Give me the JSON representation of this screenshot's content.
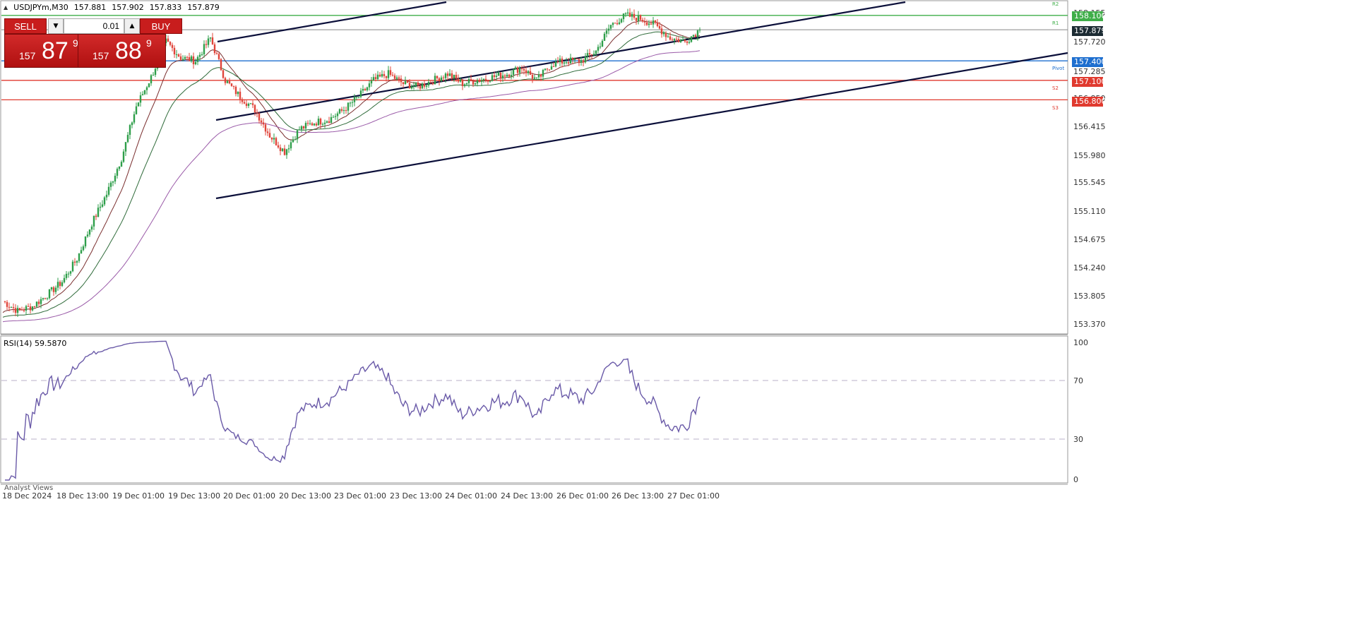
{
  "header": {
    "symbol_tf": "USDJPYm,M30",
    "ohlc": [
      "157.881",
      "157.902",
      "157.833",
      "157.879"
    ]
  },
  "trade_panel": {
    "sell_label": "SELL",
    "buy_label": "BUY",
    "volume": "0.01",
    "sell_price": {
      "small": "157",
      "big": "87",
      "sup": "9"
    },
    "buy_price": {
      "small": "157",
      "big": "88",
      "sup": "9"
    }
  },
  "y_axis": [
    "158.155",
    "157.720",
    "157.285",
    "156.850",
    "156.415",
    "155.980",
    "155.545",
    "155.110",
    "154.675",
    "154.240",
    "153.805",
    "153.370"
  ],
  "price_tags": [
    {
      "value": "158.100",
      "color": "#3fae49"
    },
    {
      "value": "157.879",
      "color": "#1c2b33"
    },
    {
      "value": "157.400",
      "color": "#1e6fcf"
    },
    {
      "value": "157.100",
      "color": "#e03a2f"
    },
    {
      "value": "156.800",
      "color": "#e03a2f"
    }
  ],
  "pivot_labels": [
    "R2",
    "R1",
    "Pivot",
    "S2",
    "S3"
  ],
  "x_axis": [
    "18 Dec 2024",
    "18 Dec 13:00",
    "19 Dec 01:00",
    "19 Dec 13:00",
    "20 Dec 01:00",
    "20 Dec 13:00",
    "23 Dec 01:00",
    "23 Dec 13:00",
    "24 Dec 01:00",
    "24 Dec 13:00",
    "26 Dec 01:00",
    "26 Dec 13:00",
    "27 Dec 01:00"
  ],
  "rsi": {
    "title": "RSI(14) 59.5870",
    "levels": [
      "100",
      "70",
      "30",
      "0"
    ],
    "current": 59.587
  },
  "analyst_tab": "Analyst Views",
  "chart_data": {
    "type": "candlestick",
    "symbol": "USDJPYm",
    "timeframe": "M30",
    "ylim": [
      153.25,
      158.25
    ],
    "horizontal_levels": [
      {
        "label": "R1",
        "price": 158.1,
        "color": "#3fae49"
      },
      {
        "label": "Pivot",
        "price": 157.4,
        "color": "#1e6fcf"
      },
      {
        "label": "S2",
        "price": 157.1,
        "color": "#e03a2f"
      },
      {
        "label": "S3",
        "price": 156.8,
        "color": "#e03a2f"
      },
      {
        "label": "bid",
        "price": 157.879,
        "color": "#888888"
      }
    ],
    "close_path": [
      153.7,
      153.55,
      153.62,
      153.8,
      154.0,
      154.35,
      154.9,
      155.35,
      155.9,
      156.7,
      157.15,
      157.7,
      157.45,
      157.4,
      157.75,
      157.1,
      156.85,
      156.65,
      156.25,
      156.0,
      156.35,
      156.45,
      156.5,
      156.65,
      156.85,
      157.1,
      157.2,
      157.05,
      157.0,
      157.1,
      157.2,
      157.05,
      157.1,
      157.15,
      157.2,
      157.3,
      157.1,
      157.35,
      157.4,
      157.4,
      157.55,
      157.95,
      158.1,
      158.05,
      157.95,
      157.75,
      157.7,
      157.88
    ]
  }
}
